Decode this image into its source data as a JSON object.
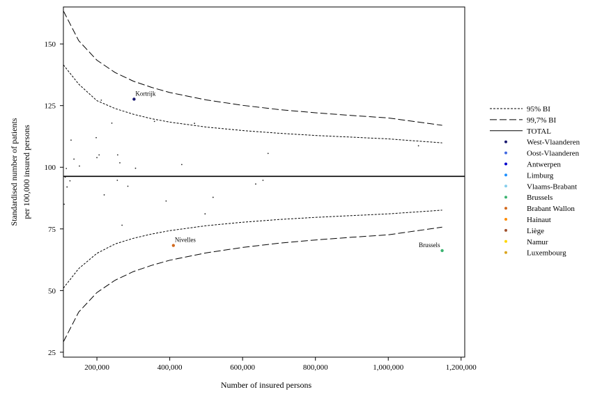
{
  "chart_data": {
    "type": "scatter",
    "title": "",
    "xlabel": "Number of insured persons",
    "ylabel": [
      "Standardised number of patients",
      "per 100,000 insured persons"
    ],
    "xlim": [
      108000,
      1210000
    ],
    "ylim": [
      23,
      165
    ],
    "x_ticks": [
      {
        "value": 200000,
        "label": "200,000"
      },
      {
        "value": 400000,
        "label": "400,000"
      },
      {
        "value": 600000,
        "label": "600,000"
      },
      {
        "value": 800000,
        "label": "800,000"
      },
      {
        "value": 1000000,
        "label": "1,000,000"
      },
      {
        "value": 1200000,
        "label": "1,200,000"
      }
    ],
    "y_ticks": [
      {
        "value": 25,
        "label": "25"
      },
      {
        "value": 50,
        "label": "50"
      },
      {
        "value": 75,
        "label": "75"
      },
      {
        "value": 100,
        "label": "100"
      },
      {
        "value": 125,
        "label": "125"
      },
      {
        "value": 150,
        "label": "150"
      }
    ],
    "grid": false,
    "legend_position": "right",
    "total": 96.3,
    "bands": [
      {
        "name": "95% BI",
        "dash": "short",
        "x": [
          108000,
          150000,
          200000,
          250000,
          300000,
          350000,
          400000,
          500000,
          600000,
          700000,
          800000,
          900000,
          1000000,
          1148000
        ],
        "upper": [
          141.5,
          133.7,
          127.0,
          123.8,
          121.5,
          119.7,
          118.3,
          116.3,
          114.9,
          113.8,
          112.9,
          112.2,
          111.5,
          109.9
        ],
        "lower": [
          51.0,
          58.9,
          65.1,
          68.9,
          71.2,
          72.9,
          74.3,
          76.3,
          77.7,
          78.8,
          79.7,
          80.4,
          81.1,
          82.6
        ]
      },
      {
        "name": "99,7% BI",
        "dash": "long",
        "x": [
          108000,
          150000,
          200000,
          250000,
          300000,
          350000,
          400000,
          500000,
          600000,
          700000,
          800000,
          900000,
          1000000,
          1148000
        ],
        "upper": [
          163.4,
          151.3,
          143.4,
          138.4,
          134.9,
          132.4,
          130.3,
          127.3,
          125.1,
          123.4,
          122.1,
          121.0,
          120.0,
          117.0
        ],
        "lower": [
          29.2,
          41.3,
          49.2,
          54.2,
          57.7,
          60.2,
          62.3,
          65.3,
          67.5,
          69.2,
          70.5,
          71.6,
          72.6,
          75.7
        ]
      }
    ],
    "series": [
      {
        "name": "West-Vlaanderen",
        "color": "#191970",
        "points": [
          [
            302000,
            127.6
          ]
        ]
      },
      {
        "name": "Oost-Vlaanderen",
        "color": "#4169E1",
        "points": []
      },
      {
        "name": "Antwerpen",
        "color": "#0000CD",
        "points": []
      },
      {
        "name": "Limburg",
        "color": "#1E90FF",
        "points": []
      },
      {
        "name": "Vlaams-Brabant",
        "color": "#87CEEB",
        "points": []
      },
      {
        "name": "Brussels",
        "color": "#3CB371",
        "points": [
          [
            1148000,
            66.2
          ]
        ]
      },
      {
        "name": "Brabant Wallon",
        "color": "#D2691E",
        "points": [
          [
            410000,
            68.3
          ]
        ]
      },
      {
        "name": "Hainaut",
        "color": "#FF8C00",
        "points": []
      },
      {
        "name": "Liège",
        "color": "#A0522D",
        "points": []
      },
      {
        "name": "Namur",
        "color": "#FFD700",
        "points": []
      },
      {
        "name": "Luxembourg",
        "color": "#DAA520",
        "points": []
      }
    ],
    "other_points": [
      [
        110000,
        85.0
      ],
      [
        113000,
        96.0
      ],
      [
        116000,
        99.5
      ],
      [
        118000,
        92.0
      ],
      [
        126000,
        94.5
      ],
      [
        129000,
        111.0
      ],
      [
        137000,
        103.3
      ],
      [
        152000,
        100.5
      ],
      [
        198000,
        112.0
      ],
      [
        200000,
        103.9
      ],
      [
        206000,
        105.0
      ],
      [
        212000,
        127.2
      ],
      [
        220000,
        88.8
      ],
      [
        241000,
        117.9
      ],
      [
        256000,
        94.7
      ],
      [
        257000,
        105.0
      ],
      [
        263000,
        101.8
      ],
      [
        269000,
        76.5
      ],
      [
        285000,
        92.3
      ],
      [
        306000,
        99.6
      ],
      [
        358000,
        118.6
      ],
      [
        390000,
        86.3
      ],
      [
        433000,
        101.1
      ],
      [
        468000,
        117.8
      ],
      [
        497000,
        81.1
      ],
      [
        519000,
        87.8
      ],
      [
        636000,
        93.2
      ],
      [
        656000,
        94.7
      ],
      [
        670000,
        105.6
      ],
      [
        1083000,
        108.7
      ]
    ],
    "annotations": [
      {
        "text": "Kortrijk",
        "x": 302000,
        "y": 127.6
      },
      {
        "text": "Nivelles",
        "x": 410000,
        "y": 68.3
      },
      {
        "text": "Brussels",
        "x": 1148000,
        "y": 66.2
      }
    ],
    "legend": {
      "lines": [
        {
          "label": "95% BI",
          "dash": "short"
        },
        {
          "label": "99,7% BI",
          "dash": "long"
        },
        {
          "label": "TOTAL",
          "dash": "solid"
        }
      ]
    }
  }
}
